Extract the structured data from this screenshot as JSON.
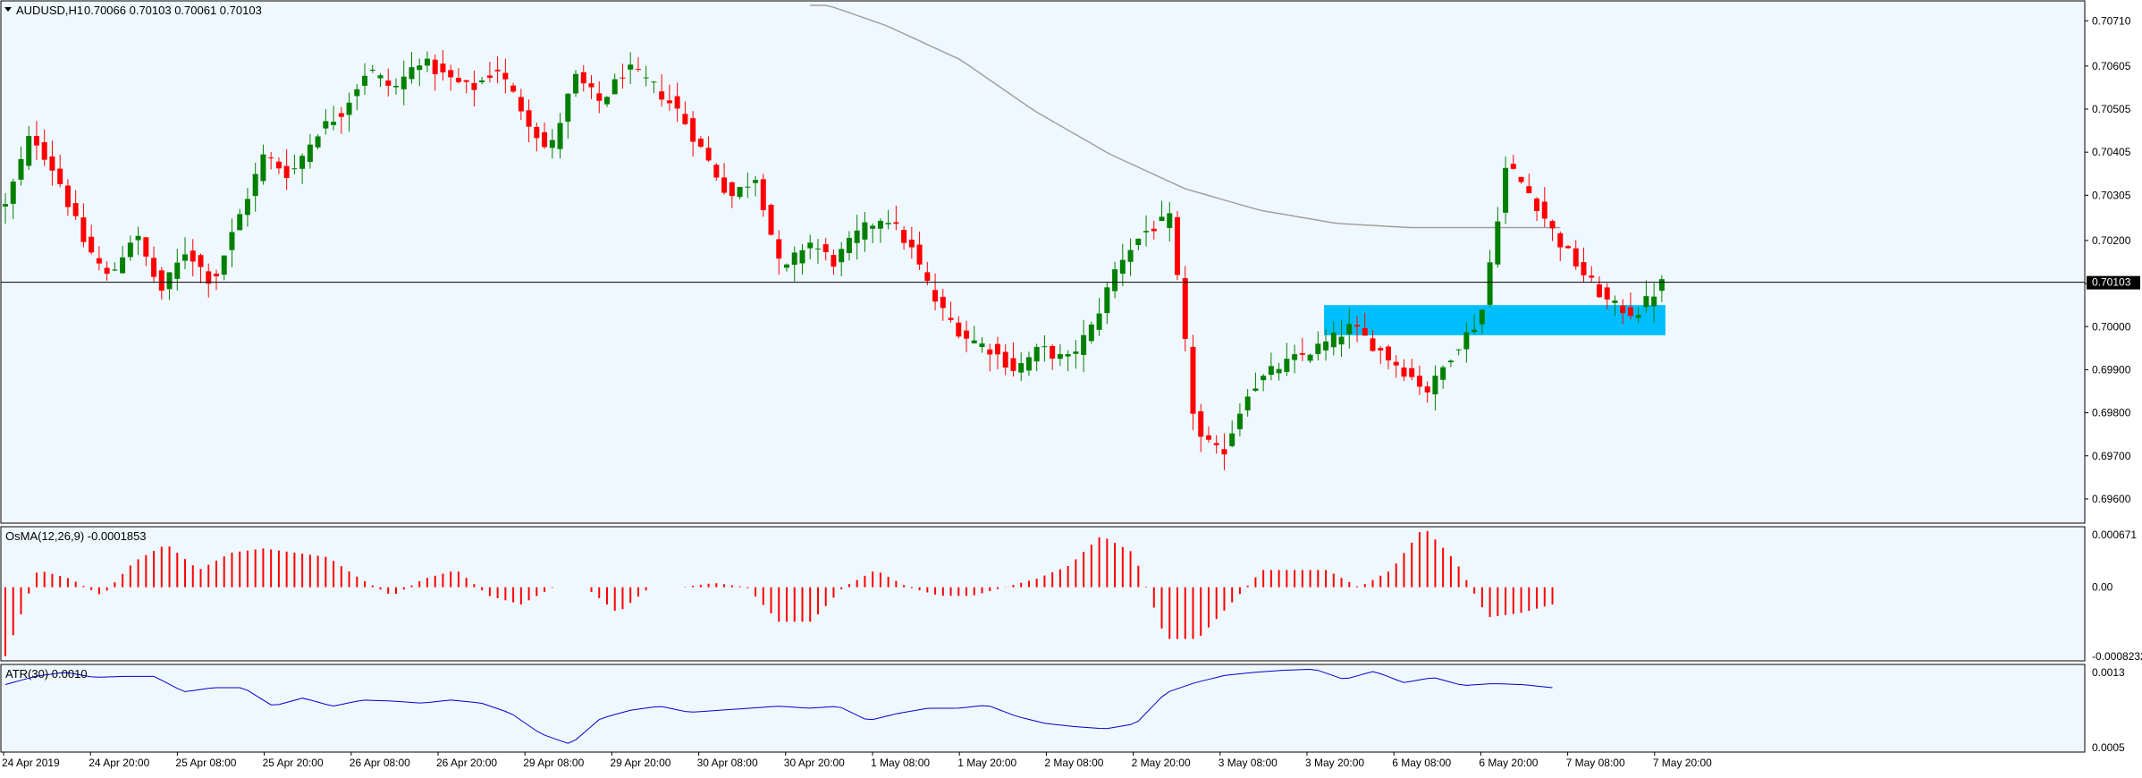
{
  "header": {
    "symbol": "AUDUSD,H1",
    "ohlc": "0.70066 0.70103 0.70061 0.70103"
  },
  "osma_label": "OsMA(12,26,9) -0.0001853",
  "atr_label": "ATR(30) 0.0010",
  "colors": {
    "background": "#f0f8ff",
    "bull": "#008000",
    "bear": "#ff0000",
    "ma": "#a0a0a0",
    "zone": "#00bfff",
    "atr": "#0000cd",
    "grid_text": "#000000",
    "current_price_tag": "#000000"
  },
  "chart_data": [
    {
      "type": "candlestick",
      "title": "AUDUSD,H1",
      "current_price": 0.70103,
      "current_price_label": "0.70103",
      "ylim": [
        0.6955,
        0.7075
      ],
      "y_ticks": [
        "0.70710",
        "0.70605",
        "0.70505",
        "0.70405",
        "0.70305",
        "0.70200",
        "0.70100",
        "0.70000",
        "0.69900",
        "0.69800",
        "0.69700",
        "0.69600"
      ],
      "x_ticks": [
        "24 Apr 2019",
        "24 Apr 20:00",
        "25 Apr 08:00",
        "25 Apr 20:00",
        "26 Apr 08:00",
        "26 Apr 20:00",
        "29 Apr 08:00",
        "29 Apr 20:00",
        "30 Apr 08:00",
        "30 Apr 20:00",
        "1 May 08:00",
        "1 May 20:00",
        "2 May 08:00",
        "2 May 20:00",
        "3 May 08:00",
        "3 May 20:00",
        "6 May 08:00",
        "6 May 20:00",
        "7 May 08:00",
        "7 May 20:00"
      ],
      "anchors": [
        0.7028,
        0.7045,
        0.7035,
        0.702,
        0.7011,
        0.7022,
        0.7008,
        0.7018,
        0.701,
        0.7025,
        0.704,
        0.7035,
        0.7045,
        0.705,
        0.706,
        0.7055,
        0.7062,
        0.7058,
        0.7055,
        0.706,
        0.705,
        0.704,
        0.7058,
        0.7052,
        0.706,
        0.7056,
        0.705,
        0.704,
        0.703,
        0.7035,
        0.7012,
        0.702,
        0.7015,
        0.7022,
        0.7026,
        0.7018,
        0.7005,
        0.6998,
        0.6995,
        0.699,
        0.6995,
        0.6992,
        0.7,
        0.7015,
        0.7022,
        0.7025,
        0.6975,
        0.697,
        0.6985,
        0.699,
        0.6993,
        0.6996,
        0.7,
        0.6995,
        0.699,
        0.6985,
        0.6995,
        0.7002,
        0.7038,
        0.703,
        0.702,
        0.7012,
        0.7005,
        0.7003,
        0.701
      ],
      "moving_average": {
        "from_bar": 103,
        "values": [
          0.7076,
          0.707,
          0.7062,
          0.705,
          0.704,
          0.7032,
          0.7027,
          0.7024,
          0.7023,
          0.7023,
          0.7023
        ]
      },
      "zone": {
        "from_bar": 169,
        "to_bar": 212,
        "low": 0.6998,
        "high": 0.7005
      }
    },
    {
      "type": "bar",
      "title": "OsMA(12,26,9) -0.0001853",
      "ylim": [
        -0.0008232,
        0.000671
      ],
      "y_ticks": [
        "0.000671",
        "0.00",
        "-0.0008232"
      ],
      "anchors": [
        -0.0008,
        0.0002,
        0.0001,
        -0.0001,
        0.0003,
        0.0005,
        0.0002,
        0.0004,
        0.00045,
        0.0004,
        0.00035,
        0.0001,
        -0.0001,
        0.0001,
        0.0002,
        -0.0001,
        -0.0002,
        0.0,
        0.0,
        -0.0003,
        0.0,
        0.0,
        5e-05,
        0.0,
        -0.0004,
        -0.0004,
        0.0,
        0.0002,
        0.0,
        -0.0001,
        -0.0001,
        0.0,
        0.0001,
        0.00025,
        0.0006,
        0.0004,
        -0.0006,
        -0.0006,
        -0.0002,
        0.0002,
        0.0002,
        0.0002,
        0.0,
        0.0002,
        0.0007,
        0.0003,
        -0.00035,
        -0.0003,
        -0.0002
      ],
      "current_value": -0.0001853
    },
    {
      "type": "line",
      "title": "ATR(30) 0.0010",
      "ylim": [
        0.0005,
        0.0013
      ],
      "y_ticks": [
        "0.0013",
        "0.0005"
      ],
      "anchors": [
        0.00113,
        0.00121,
        0.00125,
        0.0012,
        0.00121,
        0.00121,
        0.00106,
        0.0011,
        0.0011,
        0.00092,
        0.001,
        0.00092,
        0.00098,
        0.00097,
        0.00095,
        0.00098,
        0.00095,
        0.00085,
        0.00065,
        0.00055,
        0.0008,
        0.00088,
        0.00092,
        0.00086,
        0.00088,
        0.0009,
        0.00092,
        0.0009,
        0.00092,
        0.00078,
        0.00085,
        0.0009,
        0.0009,
        0.00093,
        0.00082,
        0.00075,
        0.00072,
        0.0007,
        0.00075,
        0.00105,
        0.00115,
        0.00122,
        0.00125,
        0.00127,
        0.00128,
        0.00118,
        0.00126,
        0.00115,
        0.0012,
        0.00112,
        0.00114,
        0.00113,
        0.0011
      ],
      "current_value": 0.001
    }
  ]
}
